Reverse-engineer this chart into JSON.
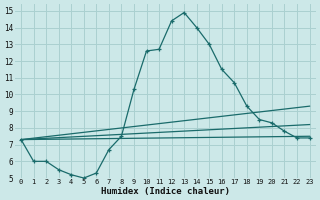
{
  "xlabel": "Humidex (Indice chaleur)",
  "bg_color": "#cce8e8",
  "grid_color": "#aad0d0",
  "line_color": "#1a6b6b",
  "xlim": [
    -0.5,
    23.5
  ],
  "ylim": [
    5,
    15.4
  ],
  "xticks": [
    0,
    1,
    2,
    3,
    4,
    5,
    6,
    7,
    8,
    9,
    10,
    11,
    12,
    13,
    14,
    15,
    16,
    17,
    18,
    19,
    20,
    21,
    22,
    23
  ],
  "yticks": [
    5,
    6,
    7,
    8,
    9,
    10,
    11,
    12,
    13,
    14,
    15
  ],
  "curve1_x": [
    0,
    1,
    2,
    3,
    4,
    5,
    6,
    7,
    8,
    9,
    10,
    11,
    12,
    13,
    14,
    15,
    16,
    17,
    18,
    19,
    20,
    21,
    22,
    23
  ],
  "curve1_y": [
    7.3,
    6.0,
    6.0,
    5.5,
    5.2,
    5.0,
    5.3,
    6.7,
    7.5,
    10.3,
    12.6,
    12.7,
    14.4,
    14.9,
    14.0,
    13.0,
    11.5,
    10.7,
    9.3,
    8.5,
    8.3,
    7.8,
    7.4,
    7.4
  ],
  "line2_x0": 0,
  "line2_x1": 23,
  "line2_y0": 7.3,
  "line2_y1": 9.3,
  "line3_x0": 0,
  "line3_x1": 23,
  "line3_y0": 7.3,
  "line3_y1": 8.2,
  "line4_x0": 0,
  "line4_x1": 23,
  "line4_y0": 7.3,
  "line4_y1": 7.5
}
